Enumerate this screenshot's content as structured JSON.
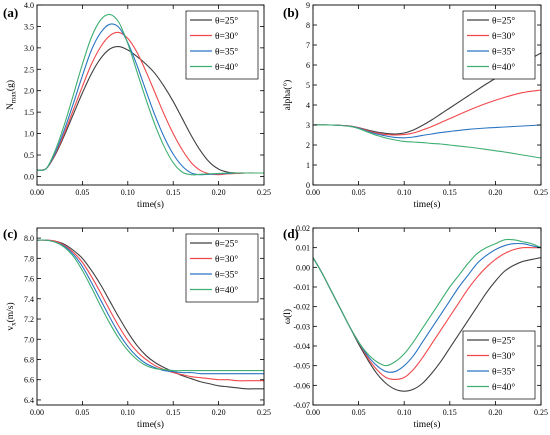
{
  "colors": {
    "s25": "#404040",
    "s30": "#f0474b",
    "s35": "#2b75c4",
    "s40": "#3fae72"
  },
  "chart_data": [
    {
      "id": "a",
      "panel_label": "(a)",
      "type": "line",
      "xlabel": "time(s)",
      "ylabel_main": "N",
      "ylabel_sub": "max",
      "ylabel_tail": "(g)",
      "xlim": [
        0,
        0.25
      ],
      "ylim": [
        -0.2,
        4.0
      ],
      "xticks": [
        0.0,
        0.05,
        0.1,
        0.15,
        0.2,
        0.25
      ],
      "xtick_labels": [
        "0.00",
        "0.05",
        "0.10",
        "0.15",
        "0.20",
        "0.25"
      ],
      "yticks": [
        0.0,
        0.5,
        1.0,
        1.5,
        2.0,
        2.5,
        3.0,
        3.5,
        4.0
      ],
      "ytick_labels": [
        "0.0",
        "0.5",
        "1.0",
        "1.5",
        "2.0",
        "2.5",
        "3.0",
        "3.5",
        "4.0"
      ],
      "legend_position": "top-right",
      "series": [
        {
          "name": "θ=25°",
          "color_key": "s25",
          "x": [
            0,
            0.01,
            0.02,
            0.03,
            0.04,
            0.05,
            0.06,
            0.07,
            0.08,
            0.09,
            0.1,
            0.11,
            0.12,
            0.13,
            0.14,
            0.15,
            0.16,
            0.17,
            0.18,
            0.19,
            0.2,
            0.21,
            0.22,
            0.23,
            0.24,
            0.25
          ],
          "y": [
            0.15,
            0.18,
            0.5,
            0.95,
            1.45,
            1.95,
            2.4,
            2.75,
            2.97,
            3.03,
            2.95,
            2.8,
            2.62,
            2.4,
            2.1,
            1.75,
            1.35,
            0.95,
            0.6,
            0.33,
            0.17,
            0.1,
            0.08,
            0.08,
            0.08,
            0.08
          ]
        },
        {
          "name": "θ=30°",
          "color_key": "s30",
          "x": [
            0,
            0.01,
            0.02,
            0.03,
            0.04,
            0.05,
            0.06,
            0.07,
            0.08,
            0.09,
            0.1,
            0.11,
            0.12,
            0.13,
            0.14,
            0.15,
            0.16,
            0.17,
            0.18,
            0.19,
            0.2,
            0.21,
            0.22,
            0.23,
            0.24,
            0.25
          ],
          "y": [
            0.15,
            0.18,
            0.52,
            1.0,
            1.55,
            2.1,
            2.62,
            3.02,
            3.28,
            3.36,
            3.22,
            2.9,
            2.45,
            1.95,
            1.45,
            1.0,
            0.62,
            0.32,
            0.14,
            0.06,
            0.04,
            0.06,
            0.07,
            0.08,
            0.08,
            0.08
          ]
        },
        {
          "name": "θ=35°",
          "color_key": "s35",
          "x": [
            0,
            0.01,
            0.02,
            0.03,
            0.04,
            0.05,
            0.06,
            0.07,
            0.08,
            0.09,
            0.1,
            0.11,
            0.12,
            0.13,
            0.14,
            0.15,
            0.16,
            0.17,
            0.18,
            0.19,
            0.2,
            0.21,
            0.22,
            0.23,
            0.24,
            0.25
          ],
          "y": [
            0.15,
            0.18,
            0.55,
            1.08,
            1.7,
            2.35,
            2.95,
            3.35,
            3.55,
            3.48,
            3.12,
            2.6,
            2.0,
            1.42,
            0.92,
            0.52,
            0.24,
            0.08,
            0.04,
            0.05,
            0.06,
            0.07,
            0.08,
            0.08,
            0.08,
            0.08
          ]
        },
        {
          "name": "θ=40°",
          "color_key": "s40",
          "x": [
            0,
            0.01,
            0.02,
            0.03,
            0.04,
            0.05,
            0.06,
            0.07,
            0.08,
            0.09,
            0.1,
            0.11,
            0.12,
            0.13,
            0.14,
            0.15,
            0.16,
            0.17,
            0.18,
            0.19,
            0.2,
            0.21,
            0.22,
            0.23,
            0.24,
            0.25
          ],
          "y": [
            0.15,
            0.18,
            0.6,
            1.2,
            1.9,
            2.62,
            3.25,
            3.65,
            3.78,
            3.6,
            3.1,
            2.45,
            1.8,
            1.2,
            0.7,
            0.32,
            0.1,
            0.04,
            0.05,
            0.06,
            0.07,
            0.08,
            0.08,
            0.08,
            0.08,
            0.08
          ]
        }
      ]
    },
    {
      "id": "b",
      "panel_label": "(b)",
      "type": "line",
      "xlabel": "time(s)",
      "ylabel": "alpha(°)",
      "xlim": [
        0,
        0.25
      ],
      "ylim": [
        0,
        9
      ],
      "xticks": [
        0.0,
        0.05,
        0.1,
        0.15,
        0.2,
        0.25
      ],
      "xtick_labels": [
        "0.00",
        "0.05",
        "0.10",
        "0.15",
        "0.20",
        "0.25"
      ],
      "yticks": [
        0,
        1,
        2,
        3,
        4,
        5,
        6,
        7,
        8,
        9
      ],
      "ytick_labels": [
        "0",
        "1",
        "2",
        "3",
        "4",
        "5",
        "6",
        "7",
        "8",
        "9"
      ],
      "legend_position": "top-right",
      "series": [
        {
          "name": "θ=25°",
          "color_key": "s25",
          "x": [
            0,
            0.02,
            0.04,
            0.05,
            0.06,
            0.07,
            0.08,
            0.09,
            0.1,
            0.11,
            0.12,
            0.13,
            0.14,
            0.15,
            0.17,
            0.19,
            0.21,
            0.23,
            0.25
          ],
          "y": [
            3.0,
            3.0,
            2.95,
            2.87,
            2.75,
            2.65,
            2.58,
            2.55,
            2.6,
            2.75,
            2.98,
            3.25,
            3.55,
            3.85,
            4.45,
            5.05,
            5.6,
            6.1,
            6.6
          ]
        },
        {
          "name": "θ=30°",
          "color_key": "s30",
          "x": [
            0,
            0.02,
            0.04,
            0.05,
            0.06,
            0.07,
            0.08,
            0.09,
            0.1,
            0.11,
            0.12,
            0.13,
            0.14,
            0.15,
            0.17,
            0.19,
            0.21,
            0.23,
            0.25
          ],
          "y": [
            3.0,
            3.0,
            2.95,
            2.86,
            2.72,
            2.6,
            2.52,
            2.5,
            2.52,
            2.6,
            2.75,
            2.92,
            3.12,
            3.32,
            3.72,
            4.08,
            4.38,
            4.62,
            4.75
          ]
        },
        {
          "name": "θ=35°",
          "color_key": "s35",
          "x": [
            0,
            0.02,
            0.04,
            0.05,
            0.06,
            0.07,
            0.08,
            0.09,
            0.1,
            0.11,
            0.12,
            0.13,
            0.14,
            0.15,
            0.17,
            0.19,
            0.21,
            0.23,
            0.25
          ],
          "y": [
            3.0,
            3.0,
            2.94,
            2.84,
            2.68,
            2.55,
            2.45,
            2.38,
            2.36,
            2.4,
            2.48,
            2.55,
            2.62,
            2.68,
            2.78,
            2.85,
            2.9,
            2.95,
            3.0
          ]
        },
        {
          "name": "θ=40°",
          "color_key": "s40",
          "x": [
            0,
            0.02,
            0.04,
            0.05,
            0.06,
            0.07,
            0.08,
            0.09,
            0.1,
            0.11,
            0.12,
            0.13,
            0.14,
            0.15,
            0.17,
            0.19,
            0.21,
            0.23,
            0.25
          ],
          "y": [
            3.0,
            3.0,
            2.93,
            2.82,
            2.65,
            2.48,
            2.35,
            2.25,
            2.18,
            2.15,
            2.12,
            2.08,
            2.05,
            2.0,
            1.9,
            1.78,
            1.65,
            1.5,
            1.35
          ]
        }
      ]
    },
    {
      "id": "c",
      "panel_label": "(c)",
      "type": "line",
      "xlabel": "time(s)",
      "ylabel_main": "v",
      "ylabel_sub": "x",
      "ylabel_tail": "(m/s)",
      "xlim": [
        0,
        0.25
      ],
      "ylim": [
        6.35,
        8.1
      ],
      "xticks": [
        0.0,
        0.05,
        0.1,
        0.15,
        0.2,
        0.25
      ],
      "xtick_labels": [
        "0.00",
        "0.05",
        "0.10",
        "0.15",
        "0.20",
        "0.25"
      ],
      "yticks": [
        6.4,
        6.6,
        6.8,
        7.0,
        7.2,
        7.4,
        7.6,
        7.8,
        8.0
      ],
      "ytick_labels": [
        "6.4",
        "6.6",
        "6.8",
        "7.0",
        "7.2",
        "7.4",
        "7.6",
        "7.8",
        "8.0"
      ],
      "legend_position": "top-right",
      "series": [
        {
          "name": "θ=25°",
          "color_key": "s25",
          "x": [
            0,
            0.01,
            0.02,
            0.03,
            0.04,
            0.05,
            0.06,
            0.07,
            0.08,
            0.09,
            0.1,
            0.11,
            0.12,
            0.13,
            0.14,
            0.15,
            0.16,
            0.17,
            0.18,
            0.19,
            0.2,
            0.21,
            0.22,
            0.23,
            0.24,
            0.25
          ],
          "y": [
            7.98,
            7.98,
            7.97,
            7.94,
            7.88,
            7.8,
            7.68,
            7.54,
            7.38,
            7.22,
            7.07,
            6.94,
            6.84,
            6.77,
            6.72,
            6.68,
            6.64,
            6.61,
            6.58,
            6.56,
            6.54,
            6.53,
            6.52,
            6.51,
            6.51,
            6.51
          ]
        },
        {
          "name": "θ=30°",
          "color_key": "s30",
          "x": [
            0,
            0.01,
            0.02,
            0.03,
            0.04,
            0.05,
            0.06,
            0.07,
            0.08,
            0.09,
            0.1,
            0.11,
            0.12,
            0.13,
            0.14,
            0.15,
            0.16,
            0.17,
            0.18,
            0.19,
            0.2,
            0.21,
            0.22,
            0.23,
            0.24,
            0.25
          ],
          "y": [
            7.98,
            7.98,
            7.97,
            7.93,
            7.86,
            7.76,
            7.62,
            7.46,
            7.29,
            7.13,
            6.99,
            6.88,
            6.8,
            6.74,
            6.7,
            6.67,
            6.65,
            6.63,
            6.62,
            6.61,
            6.6,
            6.6,
            6.59,
            6.59,
            6.59,
            6.59
          ]
        },
        {
          "name": "θ=35°",
          "color_key": "s35",
          "x": [
            0,
            0.01,
            0.02,
            0.03,
            0.04,
            0.05,
            0.06,
            0.07,
            0.08,
            0.09,
            0.1,
            0.11,
            0.12,
            0.13,
            0.14,
            0.15,
            0.16,
            0.17,
            0.18,
            0.19,
            0.2,
            0.21,
            0.22,
            0.23,
            0.24,
            0.25
          ],
          "y": [
            7.98,
            7.98,
            7.96,
            7.92,
            7.84,
            7.72,
            7.56,
            7.39,
            7.22,
            7.06,
            6.93,
            6.83,
            6.76,
            6.72,
            6.69,
            6.68,
            6.67,
            6.67,
            6.66,
            6.66,
            6.66,
            6.66,
            6.66,
            6.66,
            6.66,
            6.66
          ]
        },
        {
          "name": "θ=40°",
          "color_key": "s40",
          "x": [
            0,
            0.01,
            0.02,
            0.03,
            0.04,
            0.05,
            0.06,
            0.07,
            0.08,
            0.09,
            0.1,
            0.11,
            0.12,
            0.13,
            0.14,
            0.15,
            0.16,
            0.17,
            0.18,
            0.19,
            0.2,
            0.21,
            0.22,
            0.23,
            0.24,
            0.25
          ],
          "y": [
            7.98,
            7.98,
            7.96,
            7.91,
            7.82,
            7.68,
            7.51,
            7.33,
            7.16,
            7.01,
            6.89,
            6.8,
            6.74,
            6.71,
            6.7,
            6.69,
            6.69,
            6.69,
            6.69,
            6.69,
            6.69,
            6.69,
            6.69,
            6.69,
            6.69,
            6.69
          ]
        }
      ]
    },
    {
      "id": "d",
      "panel_label": "(d)",
      "type": "line",
      "xlabel": "time(s)",
      "ylabel": "ω(l)",
      "xlim": [
        0,
        0.25
      ],
      "ylim": [
        -0.07,
        0.02
      ],
      "xticks": [
        0.0,
        0.05,
        0.1,
        0.15,
        0.2,
        0.25
      ],
      "xtick_labels": [
        "0.00",
        "0.05",
        "0.10",
        "0.15",
        "0.20",
        "0.25"
      ],
      "yticks": [
        -0.07,
        -0.06,
        -0.05,
        -0.04,
        -0.03,
        -0.02,
        -0.01,
        0.0,
        0.01,
        0.02
      ],
      "ytick_labels": [
        "-0.07",
        "-0.06",
        "-0.05",
        "-0.04",
        "-0.03",
        "-0.02",
        "-0.01",
        "0.00",
        "0.01",
        "0.02"
      ],
      "legend_position": "bottom-right",
      "series": [
        {
          "name": "θ=25°",
          "color_key": "s25",
          "x": [
            0,
            0.01,
            0.02,
            0.03,
            0.04,
            0.05,
            0.06,
            0.07,
            0.08,
            0.09,
            0.1,
            0.11,
            0.12,
            0.13,
            0.14,
            0.15,
            0.16,
            0.17,
            0.18,
            0.19,
            0.2,
            0.21,
            0.22,
            0.23,
            0.24,
            0.25
          ],
          "y": [
            0.005,
            -0.003,
            -0.012,
            -0.021,
            -0.03,
            -0.039,
            -0.047,
            -0.054,
            -0.059,
            -0.062,
            -0.063,
            -0.062,
            -0.059,
            -0.054,
            -0.048,
            -0.041,
            -0.034,
            -0.027,
            -0.02,
            -0.013,
            -0.007,
            -0.002,
            0.001,
            0.003,
            0.004,
            0.005
          ]
        },
        {
          "name": "θ=30°",
          "color_key": "s30",
          "x": [
            0,
            0.01,
            0.02,
            0.03,
            0.04,
            0.05,
            0.06,
            0.07,
            0.08,
            0.09,
            0.1,
            0.11,
            0.12,
            0.13,
            0.14,
            0.15,
            0.16,
            0.17,
            0.18,
            0.19,
            0.2,
            0.21,
            0.22,
            0.23,
            0.24,
            0.25
          ],
          "y": [
            0.005,
            -0.003,
            -0.012,
            -0.021,
            -0.03,
            -0.038,
            -0.046,
            -0.052,
            -0.056,
            -0.057,
            -0.056,
            -0.052,
            -0.046,
            -0.039,
            -0.032,
            -0.025,
            -0.018,
            -0.011,
            -0.005,
            0.0,
            0.004,
            0.007,
            0.009,
            0.01,
            0.01,
            0.01
          ]
        },
        {
          "name": "θ=35°",
          "color_key": "s35",
          "x": [
            0,
            0.01,
            0.02,
            0.03,
            0.04,
            0.05,
            0.06,
            0.07,
            0.08,
            0.09,
            0.1,
            0.11,
            0.12,
            0.13,
            0.14,
            0.15,
            0.16,
            0.17,
            0.18,
            0.19,
            0.2,
            0.21,
            0.22,
            0.23,
            0.24,
            0.25
          ],
          "y": [
            0.005,
            -0.003,
            -0.012,
            -0.021,
            -0.03,
            -0.038,
            -0.045,
            -0.05,
            -0.053,
            -0.053,
            -0.05,
            -0.045,
            -0.038,
            -0.031,
            -0.024,
            -0.017,
            -0.01,
            -0.004,
            0.002,
            0.006,
            0.009,
            0.011,
            0.012,
            0.012,
            0.011,
            0.01
          ]
        },
        {
          "name": "θ=40°",
          "color_key": "s40",
          "x": [
            0,
            0.01,
            0.02,
            0.03,
            0.04,
            0.05,
            0.06,
            0.07,
            0.08,
            0.09,
            0.1,
            0.11,
            0.12,
            0.13,
            0.14,
            0.15,
            0.16,
            0.17,
            0.18,
            0.19,
            0.2,
            0.21,
            0.22,
            0.23,
            0.24,
            0.25
          ],
          "y": [
            0.005,
            -0.003,
            -0.012,
            -0.021,
            -0.03,
            -0.038,
            -0.044,
            -0.048,
            -0.05,
            -0.048,
            -0.044,
            -0.038,
            -0.031,
            -0.024,
            -0.017,
            -0.01,
            -0.004,
            0.002,
            0.007,
            0.01,
            0.012,
            0.014,
            0.014,
            0.013,
            0.012,
            0.01
          ]
        }
      ]
    }
  ]
}
